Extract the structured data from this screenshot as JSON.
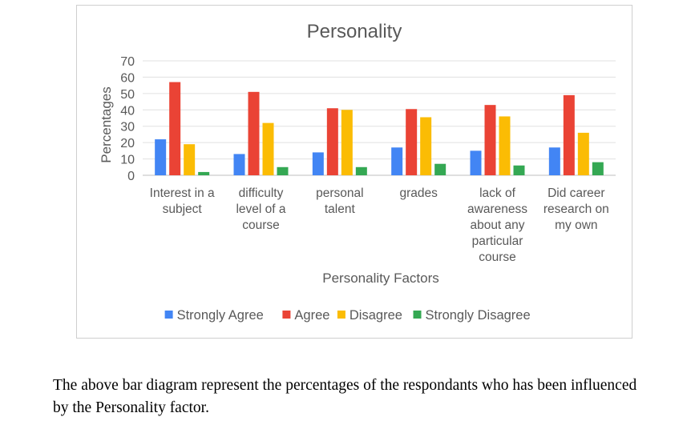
{
  "chart_data": {
    "type": "bar",
    "title": "Personality",
    "xlabel": "Personality Factors",
    "ylabel": "Percentages",
    "ylim": [
      0,
      70
    ],
    "yticks": [
      "0",
      "10",
      "20",
      "30",
      "40",
      "50",
      "60",
      "70"
    ],
    "grid": true,
    "legend_position": "bottom",
    "categories": [
      [
        "Interest in a",
        "subject"
      ],
      [
        "difficulty",
        "level of a",
        "course"
      ],
      [
        "personal",
        "talent"
      ],
      [
        "grades"
      ],
      [
        "lack of",
        "awareness",
        "about any",
        "particular",
        "course"
      ],
      [
        "Did career",
        "research on",
        "my own"
      ]
    ],
    "series": [
      {
        "name": "Strongly Agree",
        "color": "#4285f4",
        "values": [
          22,
          13,
          14,
          17,
          15,
          17
        ]
      },
      {
        "name": "Agree",
        "color": "#ea4335",
        "values": [
          57,
          51,
          41,
          40.5,
          43,
          49
        ]
      },
      {
        "name": "Disagree",
        "color": "#fbbc04",
        "values": [
          19,
          32,
          40,
          35.5,
          36,
          26
        ]
      },
      {
        "name": "Strongly Disagree",
        "color": "#34a853",
        "values": [
          2,
          5,
          5,
          7,
          6,
          8
        ]
      }
    ]
  },
  "caption": "The above bar diagram represent the percentages of the respondants who has been influenced by the Personality factor."
}
